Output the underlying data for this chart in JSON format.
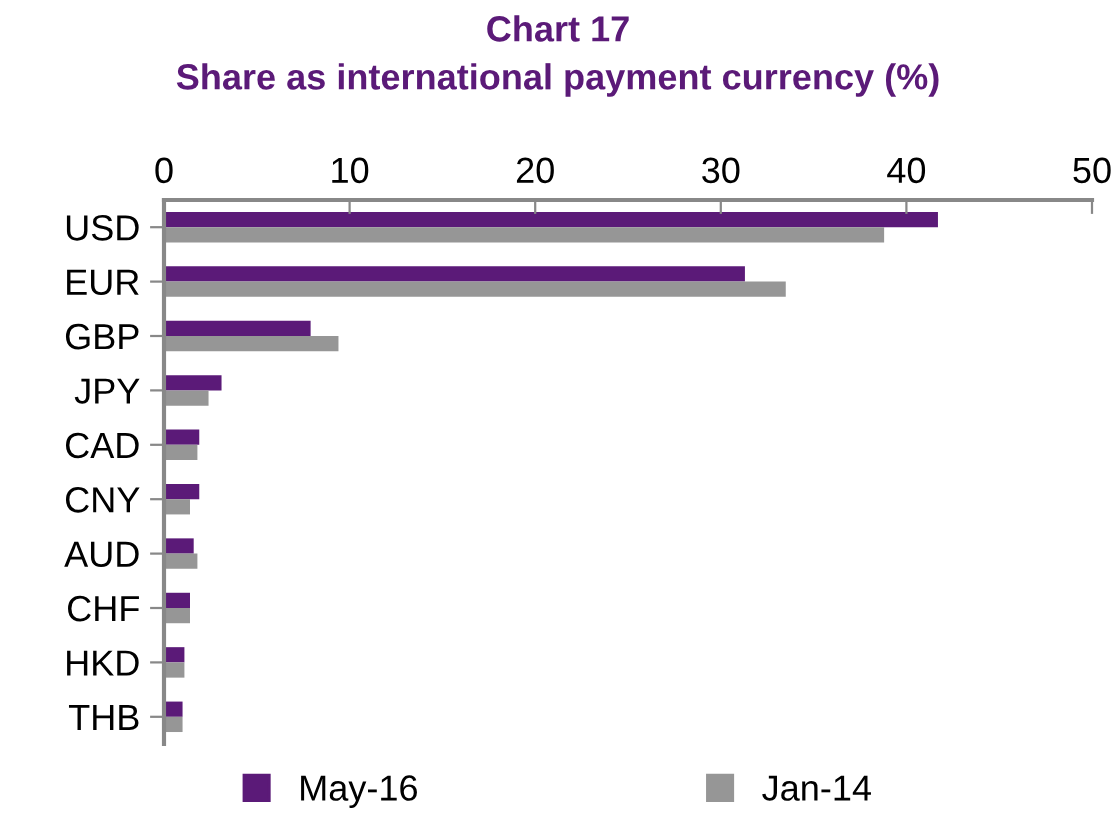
{
  "chart_data": {
    "type": "bar",
    "orientation": "horizontal",
    "title": "Chart 17",
    "subtitle": "Share as international payment currency (%)",
    "categories": [
      "USD",
      "EUR",
      "GBP",
      "JPY",
      "CAD",
      "CNY",
      "AUD",
      "CHF",
      "HKD",
      "THB"
    ],
    "series": [
      {
        "name": "May-16",
        "color": "#5b1a78",
        "values": [
          41.7,
          31.3,
          7.9,
          3.1,
          1.9,
          1.9,
          1.6,
          1.4,
          1.1,
          1.0
        ]
      },
      {
        "name": "Jan-14",
        "color": "#969696",
        "values": [
          38.8,
          33.5,
          9.4,
          2.4,
          1.8,
          1.4,
          1.8,
          1.4,
          1.1,
          1.0
        ]
      }
    ],
    "xlim": [
      0,
      50
    ],
    "xticks": [
      0,
      10,
      20,
      30,
      40,
      50
    ],
    "grid": false,
    "legend": "bottom"
  }
}
